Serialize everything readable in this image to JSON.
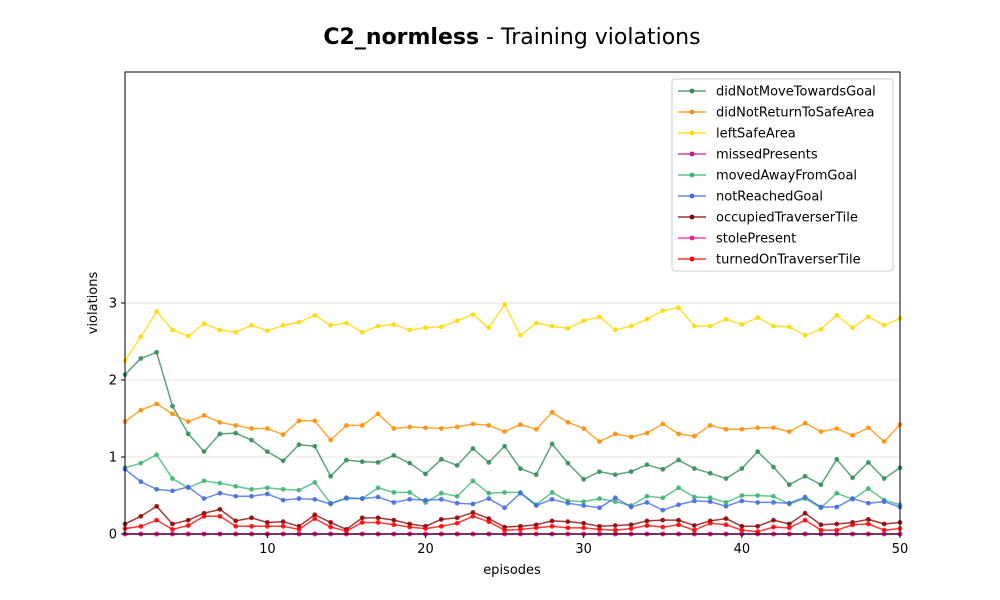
{
  "chart_data": {
    "type": "line",
    "title_bold": "C2_normless",
    "title_rest": " - Training violations",
    "xlabel": "episodes",
    "ylabel": "violations",
    "xlim": [
      1,
      50
    ],
    "ylim": [
      0,
      6
    ],
    "xticks": [
      10,
      20,
      30,
      40,
      50
    ],
    "yticks": [
      0,
      1,
      2,
      3
    ],
    "grid": "horizontal",
    "legend_position": "top-right",
    "x": [
      1,
      2,
      3,
      4,
      5,
      6,
      7,
      8,
      9,
      10,
      11,
      12,
      13,
      14,
      15,
      16,
      17,
      18,
      19,
      20,
      21,
      22,
      23,
      24,
      25,
      26,
      27,
      28,
      29,
      30,
      31,
      32,
      33,
      34,
      35,
      36,
      37,
      38,
      39,
      40,
      41,
      42,
      43,
      44,
      45,
      46,
      47,
      48,
      49,
      50
    ],
    "series": [
      {
        "name": "didNotMoveTowardsGoal",
        "color": "#2e8b57",
        "values": [
          2.07,
          2.28,
          2.36,
          1.66,
          1.3,
          1.07,
          1.3,
          1.31,
          1.22,
          1.07,
          0.95,
          1.16,
          1.14,
          0.75,
          0.96,
          0.94,
          0.93,
          1.02,
          0.92,
          0.78,
          0.97,
          0.89,
          1.11,
          0.93,
          1.14,
          0.85,
          0.77,
          1.17,
          0.92,
          0.71,
          0.81,
          0.77,
          0.81,
          0.9,
          0.84,
          0.96,
          0.85,
          0.79,
          0.72,
          0.85,
          1.07,
          0.87,
          0.64,
          0.75,
          0.64,
          0.97,
          0.73,
          0.93,
          0.72,
          0.86
        ]
      },
      {
        "name": "didNotReturnToSafeArea",
        "color": "#ff8c00",
        "values": [
          1.46,
          1.61,
          1.69,
          1.56,
          1.46,
          1.54,
          1.45,
          1.41,
          1.37,
          1.37,
          1.29,
          1.47,
          1.47,
          1.22,
          1.41,
          1.41,
          1.56,
          1.37,
          1.39,
          1.38,
          1.37,
          1.39,
          1.43,
          1.41,
          1.33,
          1.42,
          1.36,
          1.58,
          1.45,
          1.37,
          1.2,
          1.3,
          1.26,
          1.31,
          1.43,
          1.3,
          1.27,
          1.41,
          1.36,
          1.36,
          1.38,
          1.38,
          1.33,
          1.44,
          1.33,
          1.37,
          1.28,
          1.38,
          1.2,
          1.42
        ]
      },
      {
        "name": "leftSafeArea",
        "color": "#ffd700",
        "values": [
          2.25,
          2.56,
          2.89,
          2.65,
          2.57,
          2.73,
          2.65,
          2.62,
          2.71,
          2.64,
          2.71,
          2.75,
          2.84,
          2.71,
          2.74,
          2.62,
          2.7,
          2.72,
          2.65,
          2.68,
          2.69,
          2.77,
          2.85,
          2.68,
          2.98,
          2.58,
          2.74,
          2.7,
          2.67,
          2.77,
          2.82,
          2.65,
          2.7,
          2.79,
          2.9,
          2.94,
          2.7,
          2.7,
          2.79,
          2.72,
          2.81,
          2.7,
          2.69,
          2.58,
          2.66,
          2.84,
          2.68,
          2.82,
          2.71,
          2.8
        ]
      },
      {
        "name": "missedPresents",
        "color": "#c71585",
        "values": [
          0,
          0,
          0,
          0,
          0,
          0,
          0,
          0,
          0,
          0,
          0,
          0,
          0,
          0,
          0,
          0,
          0,
          0,
          0,
          0,
          0,
          0,
          0,
          0,
          0,
          0,
          0,
          0,
          0,
          0,
          0,
          0,
          0,
          0,
          0,
          0,
          0,
          0,
          0,
          0,
          0,
          0,
          0,
          0,
          0,
          0,
          0,
          0,
          0,
          0
        ]
      },
      {
        "name": "movedAwayFromGoal",
        "color": "#3cb371",
        "values": [
          0.86,
          0.92,
          1.03,
          0.72,
          0.6,
          0.69,
          0.66,
          0.62,
          0.58,
          0.6,
          0.58,
          0.57,
          0.67,
          0.4,
          0.46,
          0.46,
          0.6,
          0.54,
          0.54,
          0.41,
          0.53,
          0.49,
          0.69,
          0.53,
          0.54,
          0.54,
          0.38,
          0.54,
          0.43,
          0.42,
          0.46,
          0.42,
          0.37,
          0.49,
          0.47,
          0.6,
          0.48,
          0.47,
          0.41,
          0.5,
          0.5,
          0.49,
          0.39,
          0.46,
          0.34,
          0.53,
          0.45,
          0.59,
          0.44,
          0.38
        ]
      },
      {
        "name": "notReachedGoal",
        "color": "#4169e1",
        "values": [
          0.84,
          0.68,
          0.58,
          0.56,
          0.61,
          0.46,
          0.53,
          0.49,
          0.49,
          0.52,
          0.44,
          0.46,
          0.45,
          0.39,
          0.47,
          0.46,
          0.48,
          0.41,
          0.45,
          0.44,
          0.45,
          0.4,
          0.39,
          0.46,
          0.34,
          0.53,
          0.37,
          0.45,
          0.4,
          0.37,
          0.34,
          0.47,
          0.35,
          0.41,
          0.31,
          0.38,
          0.43,
          0.42,
          0.36,
          0.43,
          0.41,
          0.41,
          0.4,
          0.48,
          0.35,
          0.35,
          0.46,
          0.4,
          0.42,
          0.35
        ]
      },
      {
        "name": "occupiedTraverserTile",
        "color": "#8b0000",
        "values": [
          0.13,
          0.23,
          0.36,
          0.13,
          0.18,
          0.27,
          0.32,
          0.17,
          0.21,
          0.15,
          0.16,
          0.1,
          0.25,
          0.15,
          0.06,
          0.21,
          0.21,
          0.18,
          0.13,
          0.1,
          0.19,
          0.21,
          0.28,
          0.2,
          0.09,
          0.1,
          0.12,
          0.17,
          0.16,
          0.14,
          0.1,
          0.11,
          0.12,
          0.17,
          0.18,
          0.18,
          0.11,
          0.17,
          0.2,
          0.1,
          0.1,
          0.18,
          0.13,
          0.27,
          0.12,
          0.13,
          0.15,
          0.19,
          0.13,
          0.15
        ]
      },
      {
        "name": "stolePresent",
        "color": "#ff1493",
        "values": [
          0,
          0,
          0,
          0,
          0,
          0,
          0,
          0,
          0,
          0,
          0,
          0,
          0,
          0,
          0,
          0,
          0,
          0,
          0,
          0,
          0,
          0,
          0,
          0,
          0,
          0,
          0,
          0,
          0,
          0,
          0,
          0,
          0,
          0,
          0,
          0,
          0,
          0,
          0,
          0,
          0,
          0,
          0,
          0,
          0,
          0,
          0,
          0,
          0,
          0
        ]
      },
      {
        "name": "turnedOnTraverserTile",
        "color": "#ff0000",
        "values": [
          0.07,
          0.1,
          0.18,
          0.06,
          0.11,
          0.23,
          0.23,
          0.1,
          0.1,
          0.1,
          0.1,
          0.06,
          0.2,
          0.09,
          0.04,
          0.15,
          0.15,
          0.12,
          0.09,
          0.07,
          0.1,
          0.14,
          0.23,
          0.16,
          0.05,
          0.06,
          0.08,
          0.1,
          0.08,
          0.08,
          0.06,
          0.05,
          0.07,
          0.11,
          0.09,
          0.12,
          0.05,
          0.14,
          0.12,
          0.05,
          0.03,
          0.09,
          0.08,
          0.18,
          0.05,
          0.05,
          0.12,
          0.13,
          0.05,
          0.07
        ]
      }
    ]
  }
}
